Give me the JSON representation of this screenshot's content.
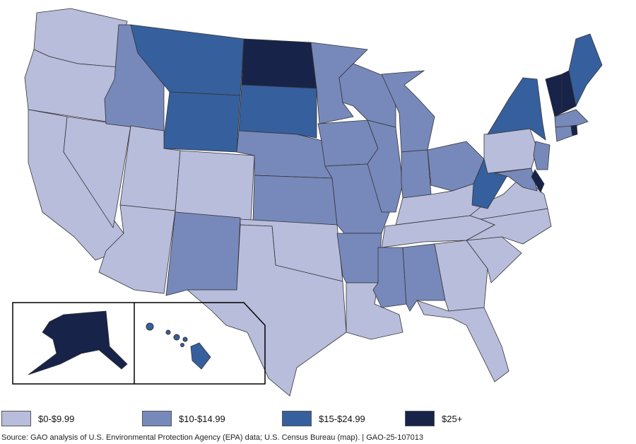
{
  "colors": {
    "bin0": "#b8bddc",
    "bin1": "#7789bb",
    "bin2": "#365f9d",
    "bin3": "#172348",
    "border": "#333333"
  },
  "legend": [
    {
      "label": "$0-$9.99",
      "bin": "bin0"
    },
    {
      "label": "$10-$14.99",
      "bin": "bin1"
    },
    {
      "label": "$15-$24.99",
      "bin": "bin2"
    },
    {
      "label": "$25+",
      "bin": "bin3"
    }
  ],
  "states": {
    "WA": "bin0",
    "OR": "bin0",
    "CA": "bin0",
    "NV": "bin0",
    "UT": "bin0",
    "AZ": "bin0",
    "CO": "bin0",
    "TX": "bin0",
    "OK": "bin0",
    "LA": "bin0",
    "KY": "bin0",
    "TN": "bin0",
    "GA": "bin0",
    "FL": "bin0",
    "SC": "bin0",
    "NC": "bin0",
    "VA": "bin0",
    "PA": "bin0",
    "ID": "bin1",
    "NE": "bin1",
    "KS": "bin1",
    "NM": "bin1",
    "MN": "bin1",
    "IA": "bin1",
    "MO": "bin1",
    "AR": "bin1",
    "WI": "bin1",
    "IL": "bin1",
    "MI": "bin1",
    "IN": "bin1",
    "OH": "bin1",
    "MS": "bin1",
    "AL": "bin1",
    "MA": "bin1",
    "CT": "bin1",
    "NJ": "bin1",
    "MD": "bin1",
    "MT": "bin2",
    "WY": "bin2",
    "SD": "bin2",
    "NY": "bin2",
    "WV": "bin2",
    "ME": "bin2",
    "HI": "bin2",
    "ND": "bin3",
    "VT": "bin3",
    "NH": "bin3",
    "DE": "bin3",
    "RI": "bin3",
    "AK": "bin3"
  },
  "source": "Source: GAO analysis of U.S. Environmental Protection Agency (EPA) data; U.S. Census Bureau (map).  |  GAO-25-107013"
}
